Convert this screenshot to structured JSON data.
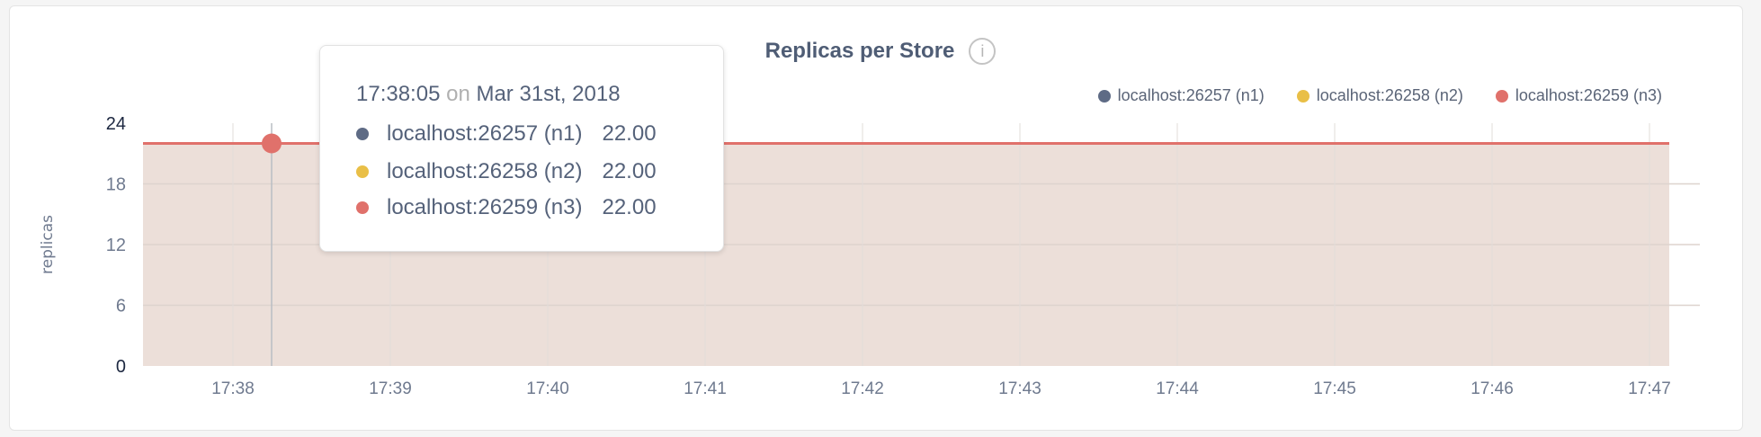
{
  "chart_data": {
    "type": "area",
    "title": "Replicas per Store",
    "xlabel": "",
    "ylabel": "replicas",
    "x_tick_labels": [
      "17:38",
      "17:39",
      "17:40",
      "17:41",
      "17:42",
      "17:43",
      "17:44",
      "17:45",
      "17:46",
      "17:47"
    ],
    "y_tick_labels": [
      "0",
      "6",
      "12",
      "18",
      "24"
    ],
    "ylim": [
      0,
      24
    ],
    "grid": true,
    "legend": "top-right",
    "x": [
      "17:38",
      "17:39",
      "17:40",
      "17:41",
      "17:42",
      "17:43",
      "17:44",
      "17:45",
      "17:46",
      "17:47"
    ],
    "series": [
      {
        "name": "localhost:26257 (n1)",
        "color": "#5e6b85",
        "values": [
          22,
          22,
          22,
          22,
          22,
          22,
          22,
          22,
          22,
          22
        ]
      },
      {
        "name": "localhost:26258 (n2)",
        "color": "#e9bf47",
        "values": [
          22,
          22,
          22,
          22,
          22,
          22,
          22,
          22,
          22,
          22
        ]
      },
      {
        "name": "localhost:26259 (n3)",
        "color": "#e0716b",
        "values": [
          22,
          22,
          22,
          22,
          22,
          22,
          22,
          22,
          22,
          22
        ]
      }
    ],
    "fill_color": "#ecdfd9"
  },
  "tooltip": {
    "time": "17:38:05",
    "on": "on",
    "date": "Mar 31st, 2018",
    "rows": [
      {
        "label": "localhost:26257 (n1)",
        "value": "22.00",
        "color": "#5e6b85"
      },
      {
        "label": "localhost:26258 (n2)",
        "value": "22.00",
        "color": "#e9bf47"
      },
      {
        "label": "localhost:26259 (n3)",
        "value": "22.00",
        "color": "#e0716b"
      }
    ]
  },
  "info_icon": "info-circle-icon",
  "info_glyph": "i"
}
